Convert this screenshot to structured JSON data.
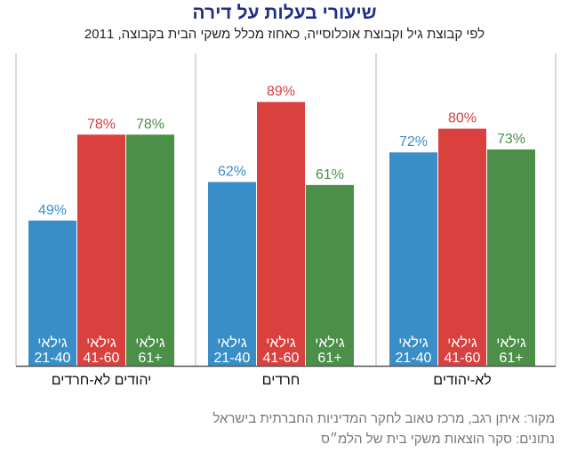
{
  "header": {
    "title": "שיעורי בעלות על דירה",
    "subtitle": "לפי קבוצת גיל וקבוצת אוכלוסייה, כאחוז מכלל משקי הבית בקבוצה, 2011"
  },
  "colors": {
    "age_21_40": "#3a8ec7",
    "age_41_60": "#d9403e",
    "age_61_plus": "#4b8f48",
    "axis": "#555555",
    "separator": "#b5b5b5"
  },
  "chart_data": {
    "type": "bar",
    "title": "שיעורי בעלות על דירה",
    "subtitle": "לפי קבוצת גיל וקבוצת אוכלוסייה, כאחוז מכלל משקי הבית בקבוצה, 2011",
    "ylabel": "",
    "xlabel": "",
    "ylim": [
      0,
      100
    ],
    "unit": "%",
    "categories": [
      "יהודים לא-חרדים",
      "חרדים",
      "לא-יהודים"
    ],
    "series": [
      {
        "name": "גילאי 21-40",
        "label_line1": "גילאי",
        "label_line2": "21-40",
        "color": "#3a8ec7",
        "values": [
          49,
          62,
          72
        ]
      },
      {
        "name": "גילאי 41-60",
        "label_line1": "גילאי",
        "label_line2": "41-60",
        "color": "#d9403e",
        "values": [
          78,
          89,
          80
        ]
      },
      {
        "name": "גילאי 61+",
        "label_line1": "גילאי",
        "label_line2": "61+",
        "color": "#4b8f48",
        "values": [
          78,
          61,
          73
        ]
      }
    ]
  },
  "footer": {
    "source_line": "מקור: איתן רגב, מרכז טאוב לחקר המדיניות החברתית בישראל",
    "data_line": "נתונים: סקר הוצאות משקי בית של הלמ״ס"
  }
}
